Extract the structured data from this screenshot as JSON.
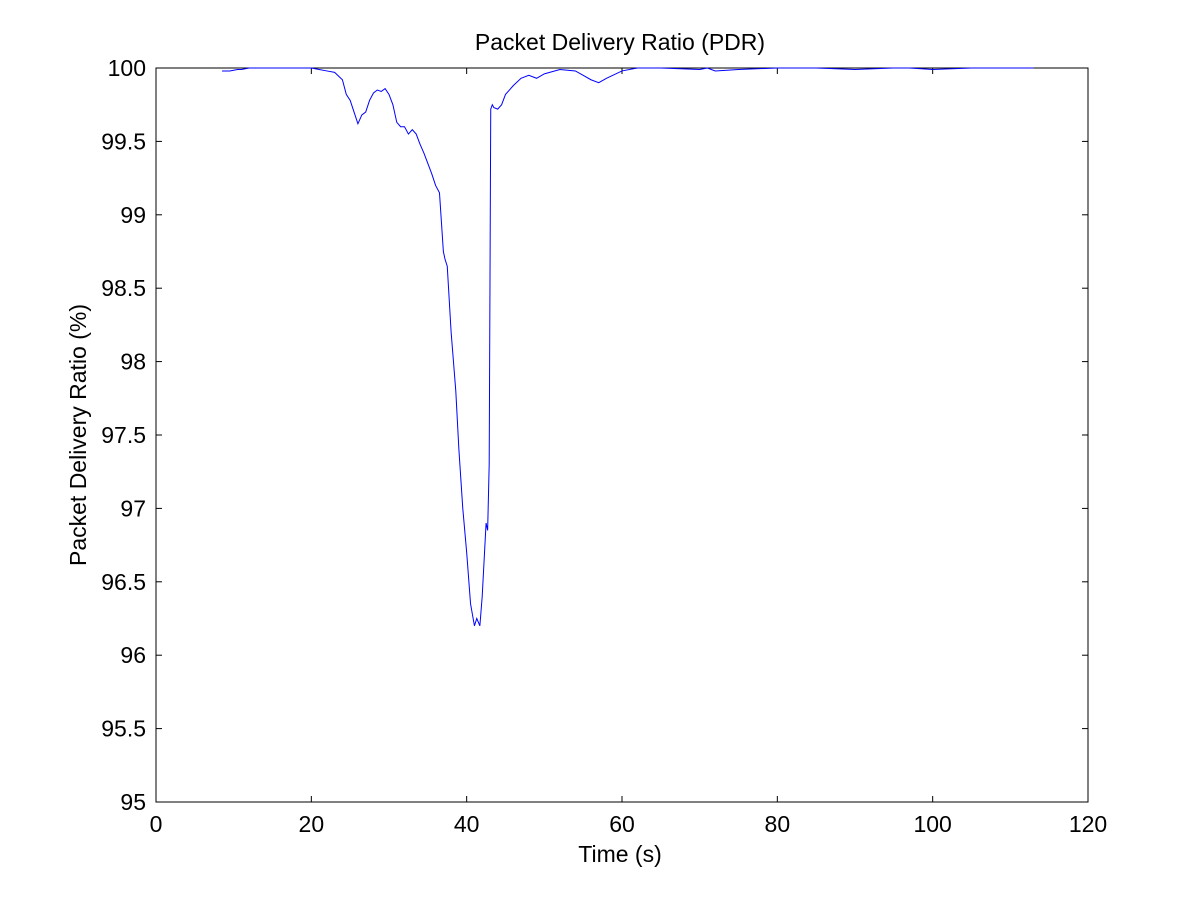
{
  "chart_data": {
    "type": "line",
    "title": "Packet Delivery Ratio (PDR)",
    "xlabel": "Time (s)",
    "ylabel": "Packet Delivery Ratio (%)",
    "xlim": [
      0,
      120
    ],
    "ylim": [
      95,
      100
    ],
    "xticks": [
      0,
      20,
      40,
      60,
      80,
      100,
      120
    ],
    "yticks": [
      95,
      95.5,
      96,
      96.5,
      97,
      97.5,
      98,
      98.5,
      99,
      99.5,
      100
    ],
    "xtick_labels": [
      "0",
      "20",
      "40",
      "60",
      "80",
      "100",
      "120"
    ],
    "ytick_labels": [
      "95",
      "95.5",
      "96",
      "96.5",
      "97",
      "97.5",
      "98",
      "98.5",
      "99",
      "99.5",
      "100"
    ],
    "grid": false,
    "series_color": "#0000ff",
    "series": [
      {
        "x": [
          8.5,
          9.5,
          10.5,
          11,
          12,
          14,
          16,
          18,
          20,
          21,
          22,
          23,
          24,
          24.5,
          25,
          25.5,
          26,
          26.5,
          27,
          27.5,
          28,
          28.5,
          29,
          29.5,
          30,
          30.5,
          31,
          31.5,
          32,
          32.5,
          33,
          33.5,
          34,
          34.5,
          35,
          35.5,
          36,
          36.5,
          37,
          37.2,
          37.5,
          38,
          38.3,
          38.6,
          39,
          39.5,
          40,
          40.5,
          41,
          41.3,
          41.7,
          42,
          42.3,
          42.5,
          42.7,
          42.9,
          43.1,
          43.3,
          43.5,
          44,
          44.5,
          45,
          45.5,
          46,
          47,
          48,
          49,
          50,
          52,
          54,
          55,
          56,
          57,
          58,
          60,
          62,
          65,
          70,
          71,
          72,
          75,
          80,
          85,
          90,
          95,
          97,
          100,
          105,
          110,
          113
        ],
        "y": [
          99.98,
          99.98,
          99.99,
          99.99,
          100,
          100,
          100,
          100,
          100,
          99.99,
          99.98,
          99.97,
          99.92,
          99.82,
          99.78,
          99.7,
          99.62,
          99.68,
          99.7,
          99.78,
          99.83,
          99.85,
          99.84,
          99.86,
          99.82,
          99.75,
          99.63,
          99.6,
          99.6,
          99.55,
          99.58,
          99.55,
          99.48,
          99.42,
          99.35,
          99.28,
          99.2,
          99.15,
          98.75,
          98.7,
          98.65,
          98.2,
          98.0,
          97.8,
          97.4,
          97.0,
          96.7,
          96.35,
          96.2,
          96.25,
          96.2,
          96.4,
          96.7,
          96.9,
          96.85,
          97.3,
          99.72,
          99.75,
          99.73,
          99.72,
          99.75,
          99.82,
          99.85,
          99.88,
          99.93,
          99.95,
          99.93,
          99.96,
          99.99,
          99.98,
          99.95,
          99.92,
          99.9,
          99.93,
          99.98,
          100,
          100,
          99.99,
          100,
          99.98,
          99.99,
          100,
          100,
          99.99,
          100,
          100,
          99.99,
          100,
          100,
          100
        ]
      }
    ]
  }
}
